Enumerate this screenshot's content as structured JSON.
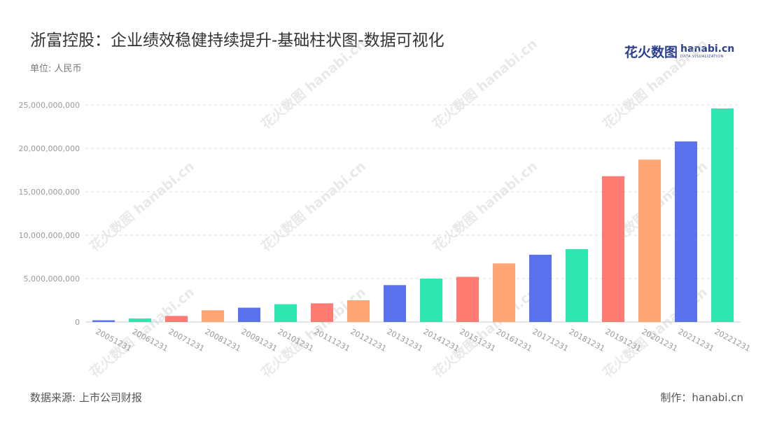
{
  "title": "浙富控股：企业绩效稳健持续提升-基础柱状图-数据可视化",
  "unit": "单位: 人民币",
  "logo": {
    "cn": "花火数图",
    "en": "hanabi.cn",
    "sub": "DATA VISUALIZATION"
  },
  "source": "数据来源: 上市公司财报",
  "maker": "制作：hanabi.cn",
  "watermark": "花火数图 hanabi.cn",
  "colors": {
    "palette": [
      "#5b72ee",
      "#2ee6b0",
      "#ff7b72",
      "#ffa674"
    ],
    "grid": "#dddddd",
    "tick": "#999999"
  },
  "chart_data": {
    "type": "bar",
    "categories": [
      "20051231",
      "20061231",
      "20071231",
      "20081231",
      "20091231",
      "20101231",
      "20111231",
      "20121231",
      "20131231",
      "20141231",
      "20151231",
      "20161231",
      "20171231",
      "20181231",
      "20191231",
      "20201231",
      "20211231",
      "20221231"
    ],
    "values": [
      200000000,
      400000000,
      700000000,
      1350000000,
      1650000000,
      2050000000,
      2150000000,
      2500000000,
      4250000000,
      5000000000,
      5200000000,
      6750000000,
      7750000000,
      8400000000,
      16800000000,
      18700000000,
      20800000000,
      24600000000
    ],
    "yticks": [
      0,
      5000000000,
      10000000000,
      15000000000,
      20000000000,
      25000000000
    ],
    "ytick_labels": [
      "0",
      "5,000,000,000",
      "10,000,000,000",
      "15,000,000,000",
      "20,000,000,000",
      "25,000,000,000"
    ],
    "ylim": [
      0,
      25000000000
    ],
    "grid": true,
    "legend": "none"
  }
}
